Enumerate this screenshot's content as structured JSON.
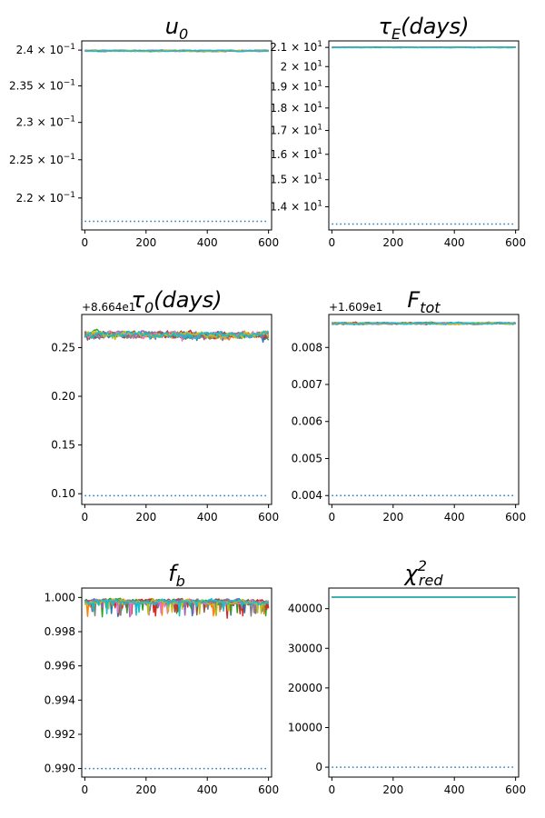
{
  "chart_data": [
    {
      "type": "line",
      "title": "u0",
      "title_main": "u",
      "title_sub": "0",
      "title_sup": "",
      "xlim": [
        -10,
        610
      ],
      "x_ticks": [
        {
          "value": 0,
          "label": "0"
        },
        {
          "value": 200,
          "label": "200"
        },
        {
          "value": 400,
          "label": "400"
        },
        {
          "value": 600,
          "label": "600"
        }
      ],
      "yscale": "log",
      "ylim": [
        0.2159,
        0.2413
      ],
      "y_ticks": [
        {
          "value": 0.24,
          "label": "2.4 × 10",
          "exp": "−1"
        },
        {
          "value": 0.235,
          "label": "2.35 × 10",
          "exp": "−1"
        },
        {
          "value": 0.23,
          "label": "2.3 × 10",
          "exp": "−1"
        },
        {
          "value": 0.225,
          "label": "2.25 × 10",
          "exp": "−1"
        },
        {
          "value": 0.22,
          "label": "2.2 × 10",
          "exp": "−1"
        }
      ],
      "offset_text": "",
      "band": {
        "center": 0.2399,
        "halfwidth": 0.00015,
        "low_extra": 0.0,
        "seed": 11
      },
      "initial": 0.217,
      "n_steps": 600
    },
    {
      "type": "line",
      "title": "τE(days)",
      "title_main": "τ",
      "title_sub": "E",
      "title_sup": "",
      "title_tail": "(days)",
      "xlim": [
        -10,
        610
      ],
      "x_ticks": [
        {
          "value": 0,
          "label": "0"
        },
        {
          "value": 200,
          "label": "200"
        },
        {
          "value": 400,
          "label": "400"
        },
        {
          "value": 600,
          "label": "600"
        }
      ],
      "yscale": "log",
      "ylim": [
        13.2,
        21.35
      ],
      "y_ticks": [
        {
          "value": 21,
          "label": "2.1 × 10",
          "exp": "1"
        },
        {
          "value": 20,
          "label": "2 × 10",
          "exp": "1"
        },
        {
          "value": 19,
          "label": "1.9 × 10",
          "exp": "1"
        },
        {
          "value": 18,
          "label": "1.8 × 10",
          "exp": "1"
        },
        {
          "value": 17,
          "label": "1.7 × 10",
          "exp": "1"
        },
        {
          "value": 16,
          "label": "1.6 × 10",
          "exp": "1"
        },
        {
          "value": 15,
          "label": "1.5 × 10",
          "exp": "1"
        },
        {
          "value": 14,
          "label": "1.4 × 10",
          "exp": "1"
        }
      ],
      "offset_text": "",
      "band": {
        "center": 21.0,
        "halfwidth": 0.02,
        "low_extra": 0.0,
        "seed": 23
      },
      "initial": 13.4,
      "n_steps": 600
    },
    {
      "type": "line",
      "title": "τ0(days)",
      "title_main": "τ",
      "title_sub": "0",
      "title_sup": "",
      "title_tail": "(days)",
      "xlim": [
        -10,
        610
      ],
      "x_ticks": [
        {
          "value": 0,
          "label": "0"
        },
        {
          "value": 200,
          "label": "200"
        },
        {
          "value": 400,
          "label": "400"
        },
        {
          "value": 600,
          "label": "600"
        }
      ],
      "yscale": "linear",
      "ylim": [
        0.089,
        0.284
      ],
      "y_ticks": [
        {
          "value": 0.25,
          "label": "0.25"
        },
        {
          "value": 0.2,
          "label": "0.20"
        },
        {
          "value": 0.15,
          "label": "0.15"
        },
        {
          "value": 0.1,
          "label": "0.10"
        }
      ],
      "offset_text": "+8.664e1",
      "band": {
        "center": 0.263,
        "halfwidth": 0.006,
        "low_extra": 0.004,
        "seed": 37
      },
      "initial": 0.098,
      "n_steps": 600
    },
    {
      "type": "line",
      "title": "Ftot",
      "title_main": "F",
      "title_sub": "tot",
      "title_sup": "",
      "title_tail": "",
      "xlim": [
        -10,
        610
      ],
      "x_ticks": [
        {
          "value": 0,
          "label": "0"
        },
        {
          "value": 200,
          "label": "200"
        },
        {
          "value": 400,
          "label": "400"
        },
        {
          "value": 600,
          "label": "600"
        }
      ],
      "yscale": "linear",
      "ylim": [
        0.00376,
        0.00889
      ],
      "y_ticks": [
        {
          "value": 0.008,
          "label": "0.008"
        },
        {
          "value": 0.007,
          "label": "0.007"
        },
        {
          "value": 0.006,
          "label": "0.006"
        },
        {
          "value": 0.005,
          "label": "0.005"
        },
        {
          "value": 0.004,
          "label": "0.004"
        }
      ],
      "offset_text": "+1.609e1",
      "band": {
        "center": 0.00865,
        "halfwidth": 4e-05,
        "low_extra": 2e-05,
        "seed": 41
      },
      "initial": 0.004,
      "n_steps": 600
    },
    {
      "type": "line",
      "title": "fb",
      "title_main": "f",
      "title_sub": "b",
      "title_sup": "",
      "title_tail": "",
      "xlim": [
        -10,
        610
      ],
      "x_ticks": [
        {
          "value": 0,
          "label": "0"
        },
        {
          "value": 200,
          "label": "200"
        },
        {
          "value": 400,
          "label": "400"
        },
        {
          "value": 600,
          "label": "600"
        }
      ],
      "yscale": "linear",
      "ylim": [
        0.9895,
        1.00055
      ],
      "y_ticks": [
        {
          "value": 1.0,
          "label": "1.000"
        },
        {
          "value": 0.998,
          "label": "0.998"
        },
        {
          "value": 0.996,
          "label": "0.996"
        },
        {
          "value": 0.994,
          "label": "0.994"
        },
        {
          "value": 0.992,
          "label": "0.992"
        },
        {
          "value": 0.99,
          "label": "0.990"
        }
      ],
      "offset_text": "",
      "band": {
        "center": 0.99975,
        "halfwidth": 0.00025,
        "low_extra": 0.00085,
        "seed": 53,
        "cap": 1.0
      },
      "initial": 0.99,
      "n_steps": 600
    },
    {
      "type": "line",
      "title": "χ2red",
      "title_main": "χ",
      "title_sub": "red",
      "title_sup": "2",
      "title_tail": "",
      "xlim": [
        -10,
        610
      ],
      "x_ticks": [
        {
          "value": 0,
          "label": "0"
        },
        {
          "value": 200,
          "label": "200"
        },
        {
          "value": 400,
          "label": "400"
        },
        {
          "value": 600,
          "label": "600"
        }
      ],
      "yscale": "linear",
      "ylim": [
        -2500,
        45200
      ],
      "y_ticks": [
        {
          "value": 40000,
          "label": "40000"
        },
        {
          "value": 30000,
          "label": "30000"
        },
        {
          "value": 20000,
          "label": "20000"
        },
        {
          "value": 10000,
          "label": "10000"
        },
        {
          "value": 0,
          "label": "0"
        }
      ],
      "offset_text": "",
      "band": {
        "center": 42900,
        "halfwidth": 15,
        "low_extra": 0,
        "seed": 67
      },
      "initial": 0,
      "n_steps": 600
    }
  ],
  "series_colors": [
    "#1f77b4",
    "#ff7f0e",
    "#2ca02c",
    "#d62728",
    "#9467bd",
    "#8c564b",
    "#e377c2",
    "#7f7f7f",
    "#bcbd22",
    "#17becf"
  ],
  "initial_line_color": "#1f77b4"
}
